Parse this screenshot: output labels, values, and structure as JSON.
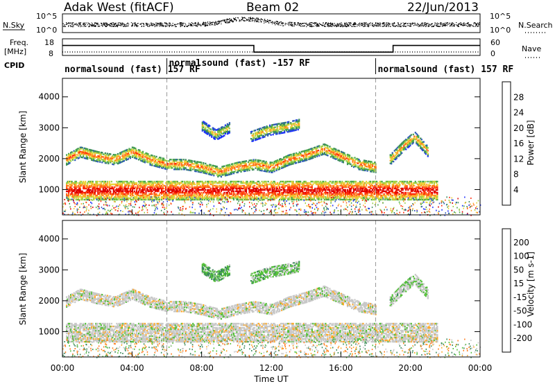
{
  "header": {
    "site": "Adak West (fitACF)",
    "beam": "Beam 02",
    "date": "22/Jun/2013"
  },
  "noise_panel": {
    "left_label": "N.Sky",
    "right_label": "N.Search",
    "left_ticks": [
      "10^5",
      "10^0"
    ],
    "right_ticks": [
      "10^5",
      "10^0"
    ]
  },
  "freq_panel": {
    "left_label_top": "Freq.",
    "left_label_unit": "[MHz]",
    "right_label": "Nave",
    "left_ticks": [
      "18",
      "8"
    ],
    "right_ticks": [
      "60",
      "0"
    ]
  },
  "cpid": {
    "label": "CPID",
    "segments": [
      {
        "text": "normalsound (fast) 157 RF",
        "start_hour": 0,
        "end_hour": 6
      },
      {
        "text": "normalsound (fast) -157 RF",
        "start_hour": 6,
        "end_hour": 18
      },
      {
        "text": "normalsound (fast) 157 RF",
        "start_hour": 18,
        "end_hour": 24
      }
    ]
  },
  "power_panel": {
    "ylabel": "Slant Range [km]",
    "yticks": [
      "1000",
      "2000",
      "3000",
      "4000"
    ],
    "colorbar_label": "Power [dB]",
    "colorbar_ticks": [
      "4",
      "8",
      "12",
      "16",
      "20",
      "24",
      "28"
    ],
    "colorbar_colors": [
      "#1a2eff",
      "#2e59b8",
      "#3a8a5a",
      "#4aa84a",
      "#9ad046",
      "#e8d43a",
      "#ffaa2a",
      "#ff6a1a",
      "#ff2a0a",
      "#dd0000"
    ]
  },
  "velocity_panel": {
    "ylabel": "Slant Range [km]",
    "yticks": [
      "1000",
      "2000",
      "3000",
      "4000"
    ],
    "colorbar_label": "Velocity [m s-1]",
    "colorbar_ticks": [
      "200",
      "100",
      "50",
      "15",
      "-15",
      "-50",
      "-100",
      "-200"
    ],
    "colorbar_colors": [
      "#1e2bd8",
      "#2e59b8",
      "#3a8a5a",
      "#55c03a",
      "#c8c8c8",
      "#ffaa2a",
      "#ff7a1a",
      "#ff3a0a",
      "#dd0000"
    ]
  },
  "xaxis": {
    "label": "Time UT",
    "ticks": [
      "00:00",
      "04:00",
      "08:00",
      "12:00",
      "16:00",
      "20:00",
      "00:00"
    ]
  },
  "chart_data": {
    "type": "heatmap",
    "title": "Adak West (fitACF) Beam 02 22/Jun/2013",
    "xlabel": "Time UT",
    "ylabel": "Slant Range [km]",
    "xlim_hours": [
      0,
      24
    ],
    "ylim_km": [
      180,
      4600
    ],
    "gridlines_hours": [
      6,
      18
    ],
    "power_range_db": [
      0,
      30
    ],
    "velocity_range_ms": [
      -250,
      250
    ],
    "echo_bands": [
      {
        "name": "near range ground scatter",
        "start_hour": 0.2,
        "end_hour": 21.5,
        "range_km": [
          700,
          1300
        ],
        "power_db": 22,
        "velocity_ms": 0
      },
      {
        "name": "main F-region band",
        "x_hours": [
          0.2,
          1.0,
          2.0,
          3.0,
          4.0,
          5.0,
          6.0,
          7.0,
          8.0,
          9.0,
          10.0,
          11.0,
          12.0,
          13.0,
          14.0,
          15.0,
          16.0,
          17.0,
          18.0
        ],
        "y_km": [
          2050,
          2300,
          2150,
          2050,
          2300,
          2050,
          1900,
          1900,
          1800,
          1650,
          1800,
          1900,
          1800,
          2050,
          2200,
          2400,
          2150,
          1900,
          1800
        ],
        "power_db": 16,
        "velocity_ms": 0
      },
      {
        "name": "late F-region arc",
        "x_hours": [
          18.8,
          19.5,
          20.2,
          21.0
        ],
        "y_km": [
          2050,
          2450,
          2800,
          2300
        ],
        "power_db": 14,
        "velocity_ms": 15
      },
      {
        "name": "upper arc",
        "x_hours": [
          8.0,
          8.8,
          9.6
        ],
        "y_km": [
          3150,
          2850,
          3100
        ],
        "power_db": 10,
        "velocity_ms": 30
      },
      {
        "name": "upper band",
        "x_hours": [
          10.8,
          11.8,
          12.8,
          13.6
        ],
        "y_km": [
          2800,
          3000,
          3100,
          3200
        ],
        "power_db": 12,
        "velocity_ms": 20
      }
    ],
    "frequency_mhz": [
      {
        "start_hour": 0,
        "end_hour": 11,
        "value": 14
      },
      {
        "start_hour": 11,
        "end_hour": 19,
        "value": 10
      },
      {
        "start_hour": 19,
        "end_hour": 24,
        "value": 14
      }
    ],
    "nave": 22,
    "noise_sky": "approx 10^1 - 10^2",
    "noise_search": "approx 10^1"
  }
}
